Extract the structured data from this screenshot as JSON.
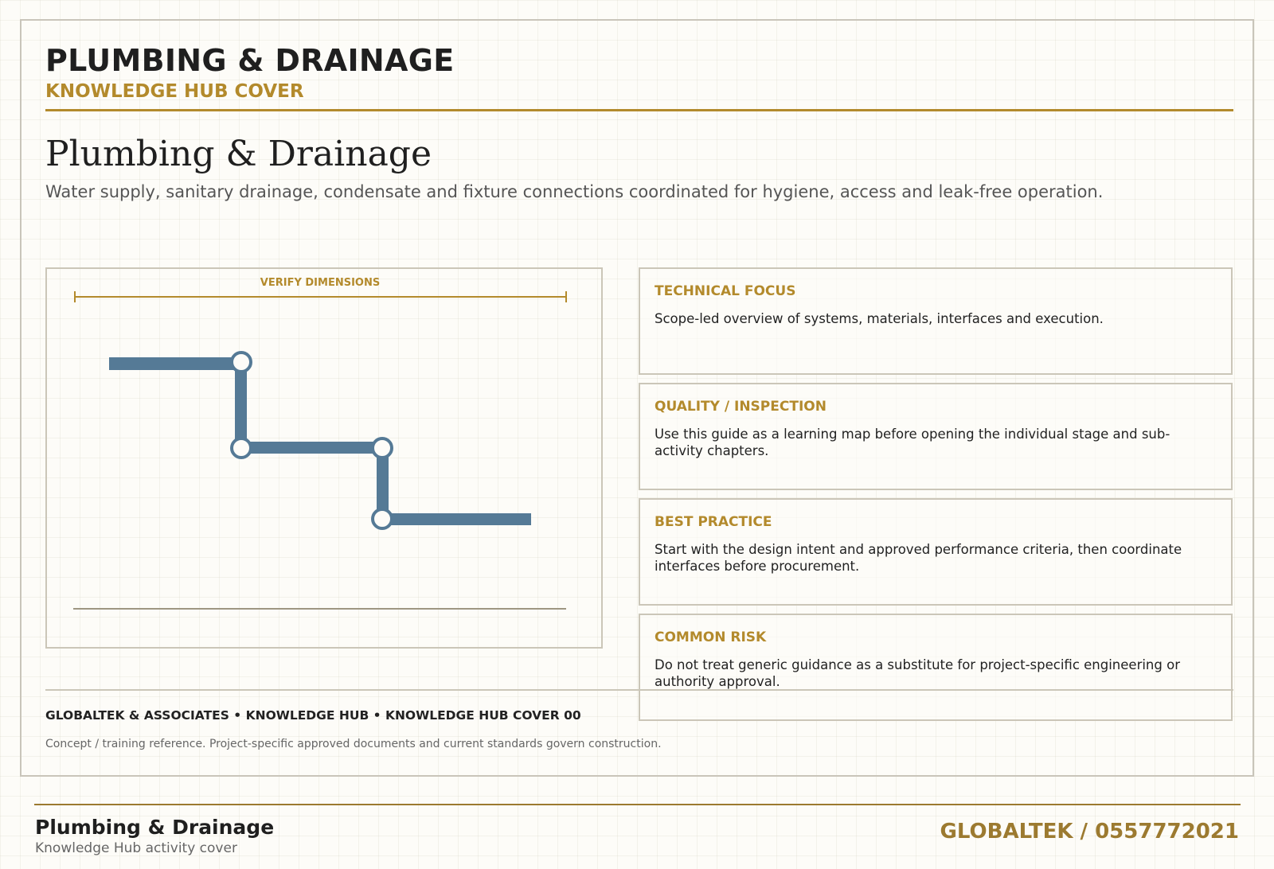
{
  "header": {
    "title": "PLUMBING & DRAINAGE",
    "subtitle": "KNOWLEDGE HUB COVER"
  },
  "main": {
    "title": "Plumbing & Drainage",
    "description": "Water supply, sanitary drainage, condensate and fixture connections coordinated for hygiene, access and leak-free operation."
  },
  "diagram": {
    "dimension_label": "VERIFY DIMENSIONS",
    "pipe_color": "#557a96",
    "accent_color": "#b38a2c"
  },
  "cards": [
    {
      "title": "TECHNICAL FOCUS",
      "body": "Scope-led overview of systems, materials, interfaces and execution."
    },
    {
      "title": "QUALITY / INSPECTION",
      "body": "Use this guide as a learning map before opening the individual stage and sub-activity chapters."
    },
    {
      "title": "BEST PRACTICE",
      "body": "Start with the design intent and approved performance criteria, then coordinate interfaces before procurement."
    },
    {
      "title": "COMMON RISK",
      "body": "Do not treat generic guidance as a substitute for project-specific engineering or authority approval."
    }
  ],
  "footer": {
    "line1": "GLOBALTEK & ASSOCIATES • KNOWLEDGE HUB • KNOWLEDGE HUB COVER 00",
    "line2": "Concept / training reference. Project-specific approved documents and current standards govern construction."
  },
  "page_footer": {
    "title": "Plumbing & Drainage",
    "subtitle": "Knowledge Hub activity cover",
    "contact": "GLOBALTEK / 0557772021"
  }
}
